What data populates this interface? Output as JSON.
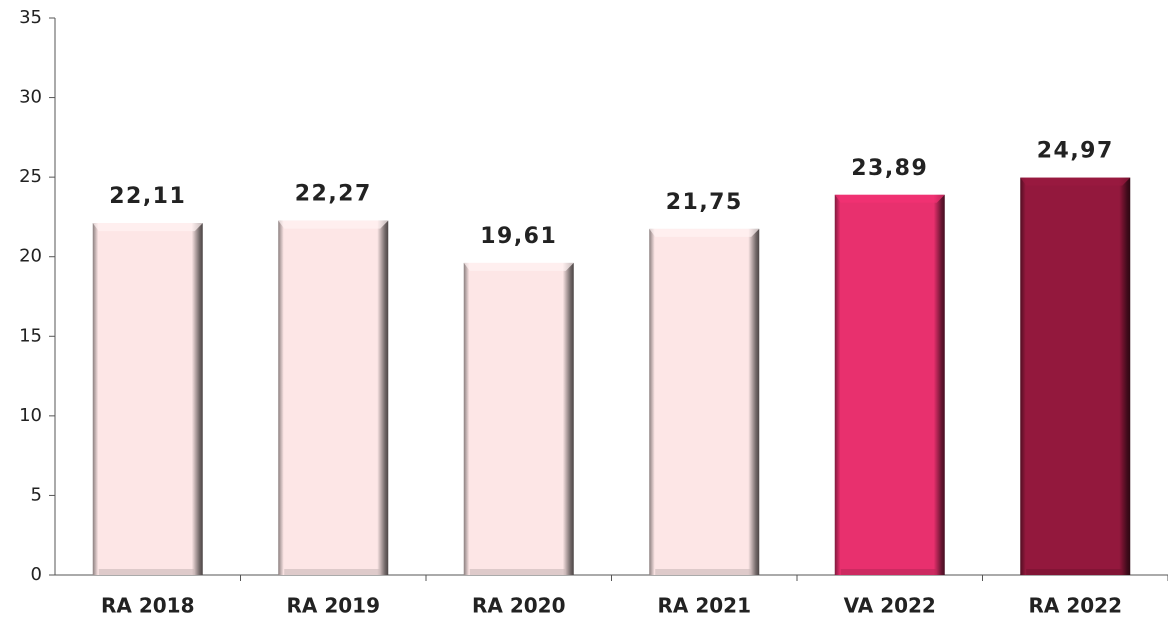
{
  "chart_data": {
    "type": "bar",
    "categories": [
      "RA 2018",
      "RA 2019",
      "RA 2020",
      "RA 2021",
      "VA 2022",
      "RA 2022"
    ],
    "values": [
      22.11,
      22.27,
      19.61,
      21.75,
      23.89,
      24.97
    ],
    "value_labels": [
      "22,11",
      "22,27",
      "19,61",
      "21,75",
      "23,89",
      "24,97"
    ],
    "colors": [
      "#fde6e6",
      "#fde6e6",
      "#fde6e6",
      "#fde6e6",
      "#e8306e",
      "#93183d"
    ],
    "ylim": [
      0,
      35
    ],
    "yticks": [
      0,
      5,
      10,
      15,
      20,
      25,
      30,
      35
    ],
    "grid": false
  }
}
